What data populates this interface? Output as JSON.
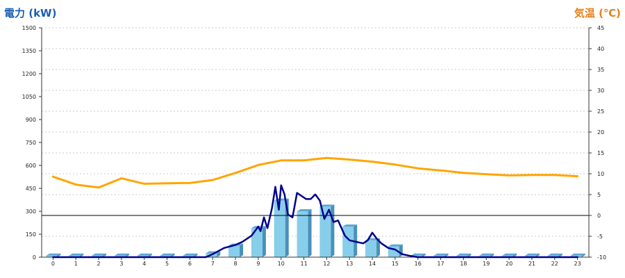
{
  "titles": {
    "left_axis": "電力 (kW)",
    "right_axis": "気温 (℃)"
  },
  "chart_data": {
    "type": "bar",
    "left_axis": {
      "ylim": [
        0,
        1500
      ],
      "ticks": [
        0,
        150,
        300,
        450,
        600,
        750,
        900,
        1050,
        1200,
        1350,
        1500
      ]
    },
    "right_axis": {
      "ylim": [
        -10,
        45
      ],
      "ticks": [
        -10,
        -5,
        0,
        5,
        10,
        15,
        20,
        25,
        30,
        35,
        40,
        45
      ]
    },
    "grid": true,
    "categories": [
      "0",
      "1",
      "2",
      "3",
      "4",
      "5",
      "6",
      "7",
      "8",
      "9",
      "10",
      "11",
      "12",
      "13",
      "14",
      "15",
      "16",
      "17",
      "18",
      "19",
      "20",
      "21",
      "22",
      "23"
    ],
    "series": [
      {
        "kind": "bar",
        "axis": "left",
        "color": "#87ceeb",
        "values": [
          10,
          10,
          10,
          10,
          10,
          10,
          10,
          25,
          75,
          190,
          370,
          300,
          330,
          200,
          110,
          70,
          10,
          10,
          10,
          10,
          10,
          10,
          10,
          10
        ]
      },
      {
        "kind": "line",
        "axis": "left",
        "color": "#00008b",
        "x": [
          0,
          1,
          2,
          3,
          4,
          5,
          6,
          6.7,
          7,
          7.5,
          8,
          8.3,
          8.7,
          9,
          9.1,
          9.25,
          9.4,
          9.6,
          9.75,
          9.9,
          10,
          10.15,
          10.3,
          10.5,
          10.7,
          10.9,
          11.1,
          11.3,
          11.5,
          11.7,
          11.9,
          12.1,
          12.3,
          12.5,
          12.8,
          13,
          13.3,
          13.6,
          13.8,
          14,
          14.2,
          14.4,
          14.7,
          15,
          15.3,
          15.6,
          16,
          17,
          18,
          19,
          20,
          21,
          22,
          23
        ],
        "values": [
          0,
          0,
          0,
          0,
          0,
          0,
          0,
          0,
          20,
          60,
          80,
          100,
          140,
          200,
          170,
          260,
          190,
          320,
          460,
          310,
          470,
          410,
          280,
          260,
          420,
          400,
          380,
          380,
          410,
          370,
          250,
          310,
          230,
          240,
          140,
          110,
          100,
          90,
          110,
          160,
          120,
          90,
          60,
          50,
          20,
          10,
          0,
          0,
          0,
          0,
          0,
          0,
          0,
          0
        ]
      },
      {
        "kind": "line",
        "axis": "right",
        "color": "#ffa500",
        "x": [
          0,
          1,
          2,
          3,
          4,
          5,
          6,
          7,
          8,
          9,
          10,
          11,
          12,
          13,
          14,
          15,
          16,
          17,
          18,
          19,
          20,
          21,
          22,
          23
        ],
        "values": [
          9.3,
          7.4,
          6.7,
          8.9,
          7.6,
          7.7,
          7.8,
          8.5,
          10.2,
          12.1,
          13.2,
          13.2,
          13.8,
          13.4,
          12.9,
          12.2,
          11.3,
          10.8,
          10.2,
          9.9,
          9.6,
          9.7,
          9.7,
          9.4
        ]
      }
    ]
  }
}
